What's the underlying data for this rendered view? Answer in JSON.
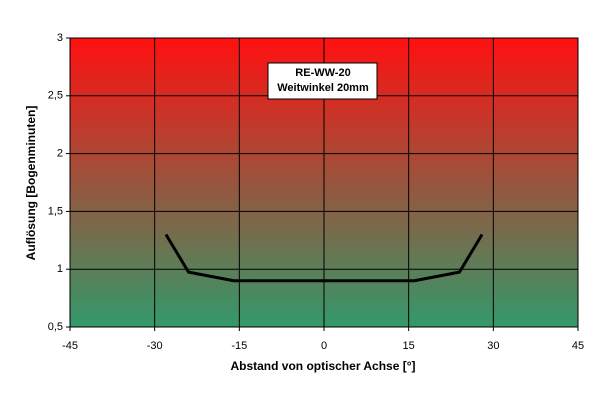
{
  "chart_data": {
    "type": "line",
    "x_label": "Abstand von optischer Achse [°]",
    "y_label": "Auflösung [Bogenminuten]",
    "annotation": [
      "RE-WW-20",
      "Weitwinkel 20mm"
    ],
    "x": [
      -28,
      -24,
      -16,
      16,
      24,
      28
    ],
    "series": [
      {
        "color": "#000000",
        "values": [
          1.3,
          0.975,
          0.9,
          0.9,
          0.975,
          1.3
        ]
      }
    ],
    "xlim": [
      -45,
      45
    ],
    "xticks": [
      -45,
      -30,
      -15,
      0,
      15,
      30,
      45
    ],
    "ylim": [
      0.5,
      3
    ],
    "yticks": [
      {
        "value": 0.5,
        "label": "0,5"
      },
      1,
      {
        "value": 1.5,
        "label": "1,5"
      },
      2,
      {
        "value": 2.5,
        "label": "2,5"
      },
      3
    ],
    "grid": true,
    "background_gradient": [
      "#ff1010",
      "#33996a"
    ]
  }
}
